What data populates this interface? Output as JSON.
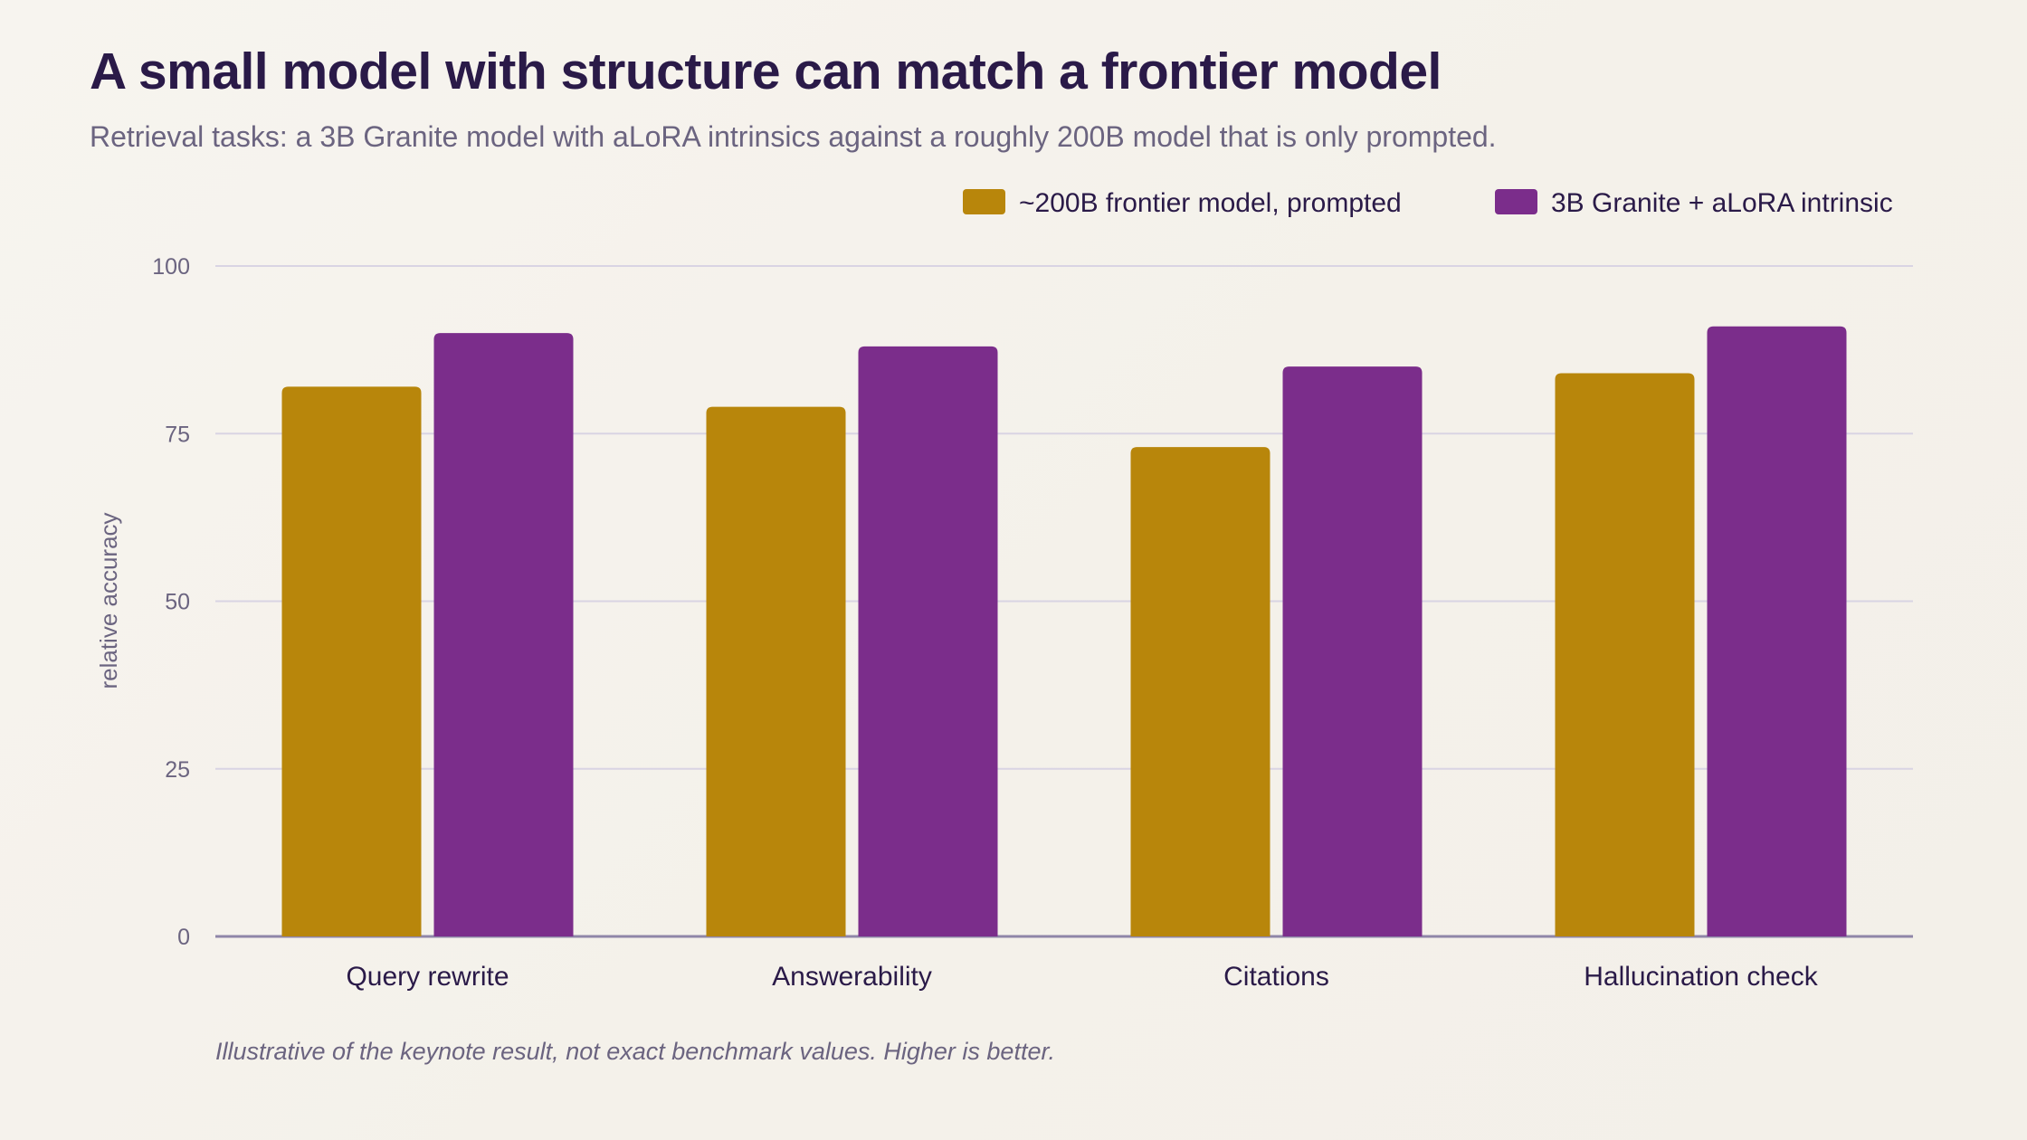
{
  "header": {
    "title": "A small model with structure can match a frontier model",
    "subtitle": "Retrieval tasks: a 3B Granite model with aLoRA intrinsics against a roughly 200B model that is only prompted."
  },
  "footnote": "Illustrative of the keynote result, not exact benchmark values. Higher is better.",
  "chart_data": {
    "type": "bar",
    "title": "A small model with structure can match a frontier model",
    "subtitle": "Retrieval tasks: a 3B Granite model with aLoRA intrinsics against a roughly 200B model that is only prompted.",
    "xlabel": "",
    "ylabel": "relative accuracy",
    "ylim": [
      0,
      100
    ],
    "yticks": [
      0,
      25,
      50,
      75,
      100
    ],
    "grid": true,
    "legend_position": "top-right",
    "categories": [
      "Query rewrite",
      "Answerability",
      "Citations",
      "Hallucination check"
    ],
    "series": [
      {
        "name": "~200B frontier model, prompted",
        "color": "#b8860b",
        "values": [
          82,
          79,
          73,
          84
        ]
      },
      {
        "name": "3B Granite + aLoRA intrinsic",
        "color": "#7b2d8b",
        "values": [
          90,
          88,
          85,
          91
        ]
      }
    ]
  }
}
